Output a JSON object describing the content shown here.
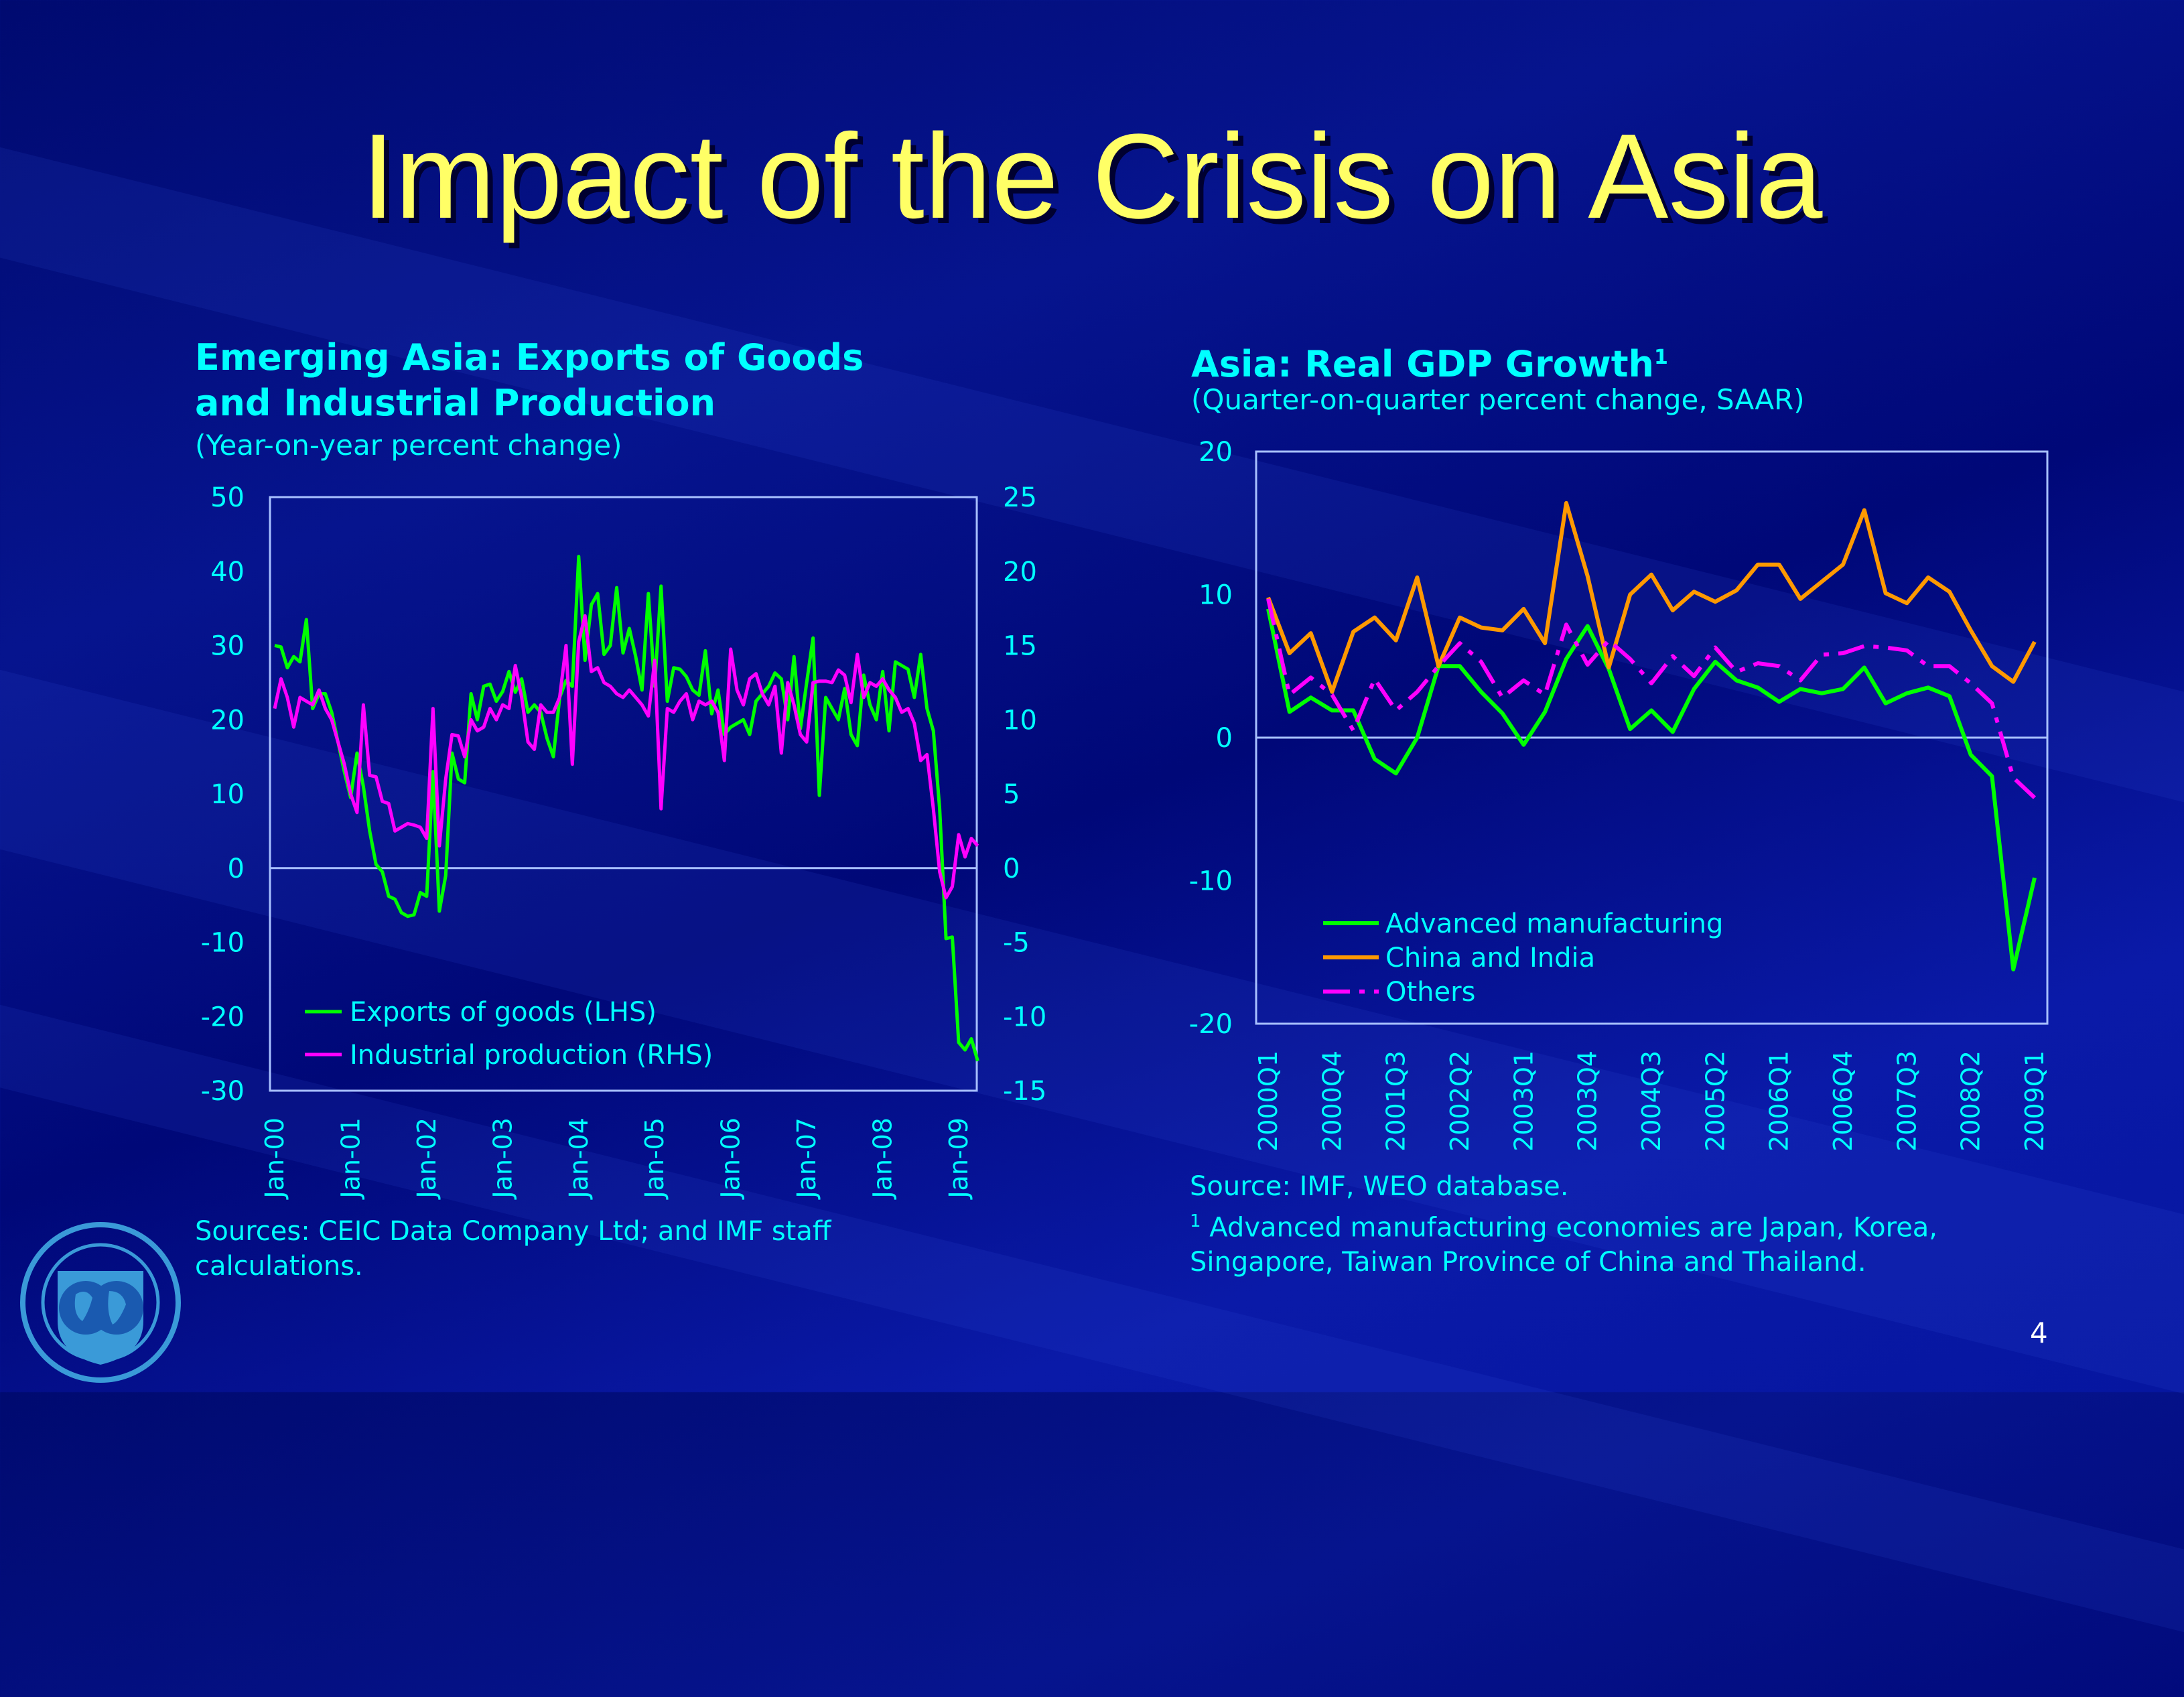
{
  "slide": {
    "title": "Impact of the Crisis on Asia",
    "page_number": "4",
    "logo_text": "INTERNATIONAL MONETARY FUND",
    "colors": {
      "title": "#ffff66",
      "text": "#00ffff",
      "background": "#000a80"
    }
  },
  "chart_data": [
    {
      "type": "line",
      "title": "Emerging Asia: Exports of Goods and Industrial Production",
      "title_line1": "Emerging Asia: Exports of Goods",
      "title_line2": "and Industrial Production",
      "subtitle": "(Year-on-year percent change)",
      "x_start": "Jan-00",
      "x_frequency": "monthly",
      "x_tick_labels": [
        "Jan-00",
        "Jan-01",
        "Jan-02",
        "Jan-03",
        "Jan-04",
        "Jan-05",
        "Jan-06",
        "Jan-07",
        "Jan-08",
        "Jan-09"
      ],
      "ylim_left": [
        -30,
        50
      ],
      "ylim_right": [
        -15,
        25
      ],
      "y_ticks_left": [
        50,
        40,
        30,
        20,
        10,
        0,
        -10,
        -20,
        -30
      ],
      "y_ticks_right": [
        25,
        20,
        15,
        10,
        5,
        0,
        -5,
        -10,
        -15
      ],
      "zero_line": true,
      "grid": false,
      "legend_position": "bottom-left",
      "source": "Sources: CEIC Data Company Ltd; and IMF staff calculations.",
      "source_line1": "Sources: CEIC Data Company Ltd; and IMF staff",
      "source_line2": "calculations.",
      "series": [
        {
          "name": "Exports of goods (LHS)",
          "axis": "left",
          "color": "#00ff00",
          "values": [
            30,
            29.8,
            27,
            28.5,
            27.8,
            33.5,
            21.5,
            23.5,
            23.5,
            21,
            17,
            13,
            9.5,
            15.5,
            11,
            5,
            0.5,
            -0.5,
            -3.8,
            -4.2,
            -6,
            -6.5,
            -6.3,
            -3.3,
            -3.8,
            13,
            -5.8,
            -1,
            15.5,
            12,
            11.5,
            23.5,
            20,
            24.5,
            24.8,
            22.5,
            23.8,
            26.5,
            23.7,
            25.5,
            21,
            22,
            21,
            17.5,
            15,
            23,
            25.3,
            24.5,
            42,
            28,
            35.5,
            37,
            28.8,
            30,
            37.8,
            29,
            32.3,
            28.5,
            24,
            37,
            24.5,
            38,
            22.5,
            27,
            26.8,
            25.8,
            24,
            23.3,
            29.3,
            20.8,
            24,
            18,
            19,
            19.5,
            20,
            18,
            22.5,
            23.5,
            24.5,
            26.3,
            25.5,
            20,
            28.5,
            18.8,
            25,
            31,
            9.8,
            23,
            21.5,
            20,
            24.2,
            18,
            16.5,
            26,
            22,
            20,
            26.5,
            18.5,
            27.8,
            27.3,
            26.8,
            23,
            28.8,
            21.5,
            18.5,
            8,
            -9.5,
            -9.3,
            -23.5,
            -24.5,
            -23,
            -26
          ]
        },
        {
          "name": "Industrial production (RHS)",
          "axis": "right",
          "color": "#ff00ff",
          "values": [
            10.75,
            12.75,
            11.5,
            9.5,
            11.5,
            11.25,
            11,
            12,
            10.75,
            10,
            8.5,
            7,
            5,
            3.75,
            11,
            6.25,
            6.15,
            4.5,
            4.35,
            2.5,
            2.75,
            3,
            2.9,
            2.75,
            2,
            10.75,
            1.5,
            6,
            9,
            8.9,
            7.5,
            10,
            9.25,
            9.5,
            10.75,
            10,
            11,
            10.75,
            13.65,
            11.5,
            8.5,
            8,
            11,
            10.5,
            10.5,
            11.5,
            15,
            7,
            15.25,
            17,
            13.25,
            13.5,
            12.5,
            12.25,
            11.75,
            11.5,
            12,
            11.5,
            11,
            10.25,
            14,
            4,
            10.75,
            10.5,
            11.25,
            11.75,
            10,
            11.25,
            11,
            11.25,
            10.5,
            7.25,
            14.75,
            12,
            11,
            12.75,
            13.1,
            11.75,
            11,
            12.25,
            7.75,
            12.5,
            11,
            9,
            8.5,
            12.5,
            12.6,
            12.6,
            12.5,
            13.35,
            13,
            11.15,
            14.4,
            11.5,
            12.5,
            12.25,
            12.75,
            12,
            11.5,
            10.5,
            10.75,
            9.75,
            7.25,
            7.65,
            4,
            -0.25,
            -2,
            -1.25,
            2.25,
            0.75,
            2,
            1.5
          ]
        }
      ]
    },
    {
      "type": "line",
      "title": "Asia: Real GDP Growth",
      "title_superscript": "1",
      "subtitle": "(Quarter-on-quarter percent change, SAAR)",
      "x_start": "2000Q1",
      "x_frequency": "quarterly",
      "x_tick_labels": [
        "2000Q1",
        "2000Q4",
        "2001Q3",
        "2002Q2",
        "2003Q1",
        "2003Q4",
        "2004Q3",
        "2005Q2",
        "2006Q1",
        "2006Q4",
        "2007Q3",
        "2008Q2",
        "2009Q1"
      ],
      "ylim": [
        -20,
        20
      ],
      "y_ticks": [
        20,
        10,
        0,
        -10,
        -20
      ],
      "zero_line": true,
      "grid": false,
      "legend_position": "bottom-left",
      "source": "Source: IMF, WEO database.",
      "footnote_mark": "1",
      "footnote_line1": "Advanced manufacturing economies are Japan, Korea,",
      "footnote_line2": "Singapore, Taiwan Province of China and Thailand.",
      "series": [
        {
          "name": "Advanced manufacturing",
          "color": "#00ff00",
          "style": "solid",
          "values": [
            9.0,
            1.8,
            2.8,
            1.9,
            1.9,
            -1.5,
            -2.5,
            0,
            5.0,
            5.0,
            3.2,
            1.7,
            -0.5,
            1.8,
            5.5,
            7.8,
            4.8,
            0.6,
            1.9,
            0.4,
            3.4,
            5.3,
            4.0,
            3.5,
            2.5,
            3.4,
            3.1,
            3.4,
            4.9,
            2.4,
            3.1,
            3.5,
            2.9,
            -1.2,
            -2.7,
            -16.2,
            -9.8
          ]
        },
        {
          "name": "China and India",
          "color": "#ff9900",
          "style": "solid",
          "values": [
            9.8,
            5.9,
            7.3,
            3.2,
            7.4,
            8.4,
            6.8,
            11.2,
            5.0,
            8.4,
            7.7,
            7.5,
            9.0,
            6.6,
            16.4,
            11.3,
            4.9,
            10.0,
            11.4,
            8.9,
            10.2,
            9.5,
            10.3,
            12.1,
            12.1,
            9.7,
            10.9,
            12.1,
            15.9,
            10.1,
            9.4,
            11.2,
            10.2,
            7.5,
            5.0,
            3.9,
            6.7
          ]
        },
        {
          "name": "Others",
          "color": "#ff00ff",
          "style": "dashed",
          "values": [
            9.7,
            3.0,
            4.2,
            3.0,
            0.5,
            4.1,
            1.9,
            3.2,
            5.0,
            6.6,
            5.3,
            2.8,
            4.0,
            3.0,
            7.9,
            5.1,
            6.8,
            5.5,
            3.8,
            5.7,
            4.3,
            6.3,
            4.6,
            5.2,
            5.0,
            4.0,
            5.8,
            5.9,
            6.4,
            6.3,
            6.1,
            5.0,
            5.0,
            3.8,
            2.4,
            -2.8,
            -4.2
          ]
        }
      ]
    }
  ]
}
